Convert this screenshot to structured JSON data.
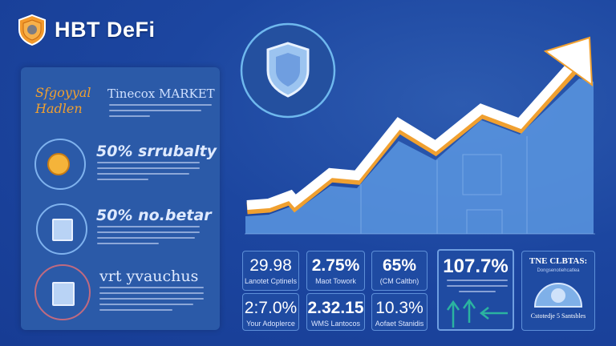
{
  "header": {
    "brand": "HBT DeFi",
    "logo_icon": "shield-icon"
  },
  "panel": {
    "items": [
      {
        "title": "Tinecox MARKET",
        "script_label": "Sfgoyyal Hadlen",
        "icon": "signature-icon"
      },
      {
        "title": "50% srrubalty",
        "icon": "coin-icon"
      },
      {
        "title": "50% no.betar",
        "icon": "document-icon"
      },
      {
        "title": "vrt yvauchus",
        "icon": "chart-document-icon"
      }
    ]
  },
  "stats": [
    {
      "value": "29.98",
      "label": "Lanotet Cptinels"
    },
    {
      "value": "2.75%",
      "label": "Maot Towork"
    },
    {
      "value": "65%",
      "label": "(CM Caltbn)"
    },
    {
      "value": "2:7.0%",
      "label": "Your Adoplerce"
    },
    {
      "value": "2.32.15",
      "label": "WMS Lantocos"
    },
    {
      "value": "10.3%",
      "label": "Aofaet Stanidis"
    }
  ],
  "highlight": {
    "value": "107.7%",
    "icon": "arrows-up-icon"
  },
  "info_card": {
    "title": "TNE CLBTAS:",
    "subtitle": "Dongsenotiehcatlea",
    "footer": "Cstotedje 5 Santsbles",
    "icon": "globe-icon"
  },
  "colors": {
    "background": "#1c46a0",
    "panel": "#2b5aa8",
    "accent": "#f0a030",
    "arrow": "#ffffff",
    "area": "#5a96e0",
    "teal": "#2bb3a0"
  }
}
